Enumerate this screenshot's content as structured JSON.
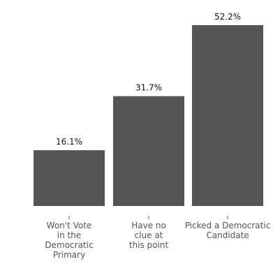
{
  "chart_data": {
    "type": "bar",
    "categories": [
      [
        "Won't Vote",
        "in the",
        "Democratic",
        "Primary"
      ],
      [
        "Have no",
        "clue at",
        "this point"
      ],
      [
        "Picked a Democratic",
        "Candidate"
      ]
    ],
    "values": [
      16.1,
      31.7,
      52.2
    ],
    "data_labels": [
      "16.1%",
      "31.7%",
      "52.2%"
    ],
    "ylim": [
      0,
      52.2
    ],
    "grid": false,
    "legend": "none",
    "bar_color": "#555555"
  }
}
